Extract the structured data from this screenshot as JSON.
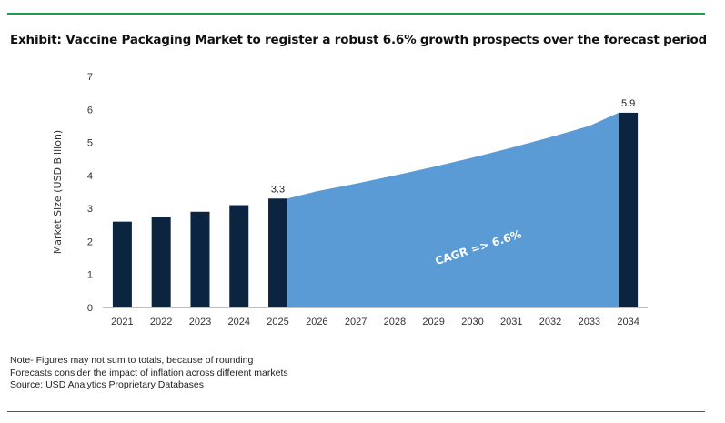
{
  "header": {
    "title": "Exhibit: Vaccine Packaging Market to register a robust 6.6% growth prospects over the forecast period"
  },
  "chart_data": {
    "type": "bar",
    "categories": [
      "2021",
      "2022",
      "2023",
      "2024",
      "2025",
      "2026",
      "2027",
      "2028",
      "2029",
      "2030",
      "2031",
      "2032",
      "2033",
      "2034"
    ],
    "bars": [
      {
        "category": "2021",
        "value": 2.6
      },
      {
        "category": "2022",
        "value": 2.75
      },
      {
        "category": "2023",
        "value": 2.9
      },
      {
        "category": "2024",
        "value": 3.1
      },
      {
        "category": "2025",
        "value": 3.3
      },
      {
        "category": "2034",
        "value": 5.9
      }
    ],
    "forecast_area": {
      "x": [
        "2025",
        "2026",
        "2027",
        "2028",
        "2029",
        "2030",
        "2031",
        "2032",
        "2033",
        "2034"
      ],
      "values": [
        3.3,
        3.52,
        3.75,
        4.0,
        4.26,
        4.54,
        4.84,
        5.16,
        5.5,
        5.9
      ]
    },
    "data_labels": [
      {
        "category": "2025",
        "text": "3.3"
      },
      {
        "category": "2034",
        "text": "5.9"
      }
    ],
    "annotation": "CAGR => 6.6%",
    "ylabel": "Market Size (USD Billion)",
    "xlabel": "",
    "ylim": [
      0,
      7
    ],
    "yticks": [
      "0",
      "1",
      "2",
      "3",
      "4",
      "5",
      "6",
      "7"
    ],
    "grid": false,
    "colors": {
      "bar": "#0b2540",
      "area": "#5b9bd5",
      "annotation_text": "#ffffff",
      "top_rule": "#1f9e50"
    }
  },
  "notes": [
    "Note- Figures may not sum to totals, because of rounding",
    "Forecasts consider the impact of inflation across different markets",
    "Source: USD Analytics Proprietary Databases"
  ]
}
